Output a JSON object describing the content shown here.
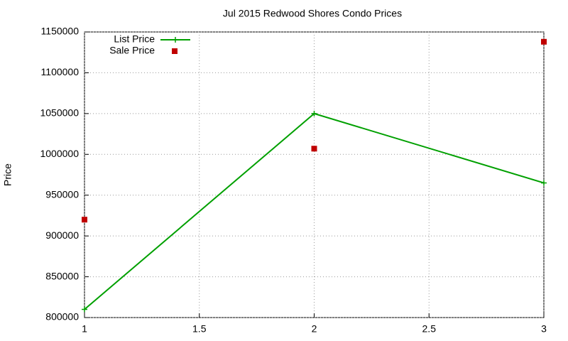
{
  "chart_data": {
    "type": "line",
    "title": "Jul 2015 Redwood Shores Condo Prices",
    "y_label": "Price",
    "x": [
      1,
      2,
      3
    ],
    "series": [
      {
        "name": "List Price",
        "color": "#00a000",
        "mode": "linespoints",
        "values": [
          810000,
          1050000,
          965000
        ]
      },
      {
        "name": "Sale Price",
        "color": "#c00000",
        "mode": "points",
        "values": [
          920000,
          1007000,
          1138000
        ]
      }
    ],
    "xlim": [
      1,
      3
    ],
    "xticks": [
      1,
      1.5,
      2,
      2.5,
      3
    ],
    "ylim": [
      800000,
      1150000
    ],
    "yticks": [
      800000,
      850000,
      900000,
      950000,
      1000000,
      1050000,
      1100000,
      1150000
    ],
    "grid": true,
    "legend": "top-left"
  }
}
